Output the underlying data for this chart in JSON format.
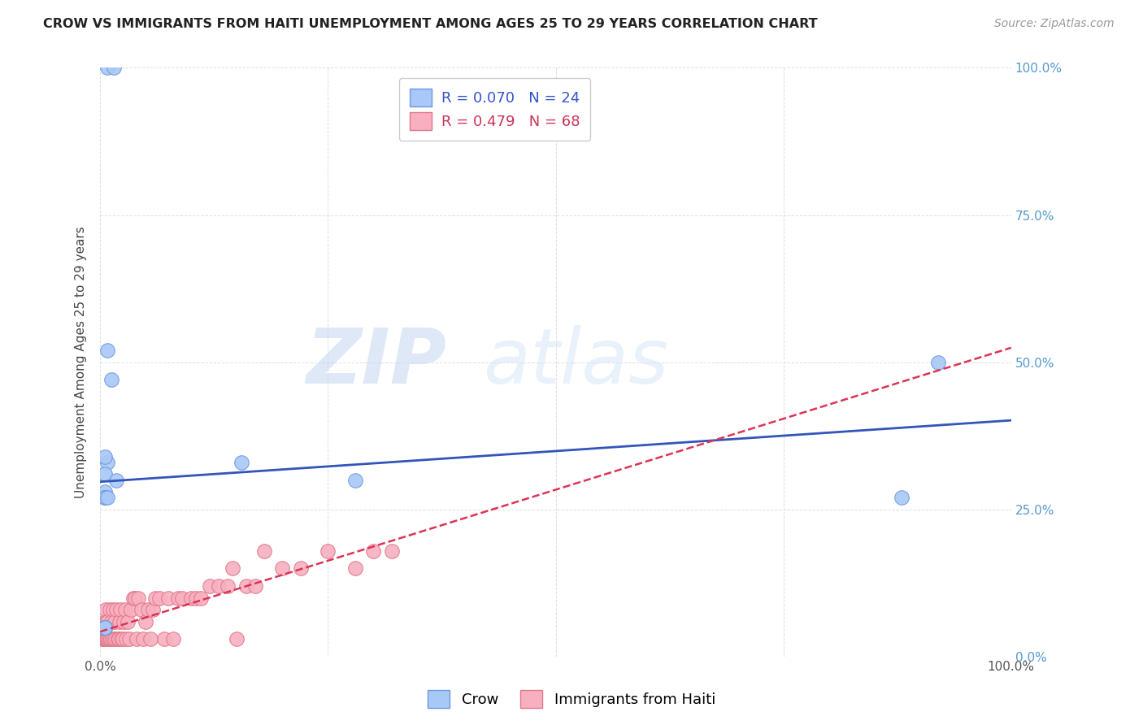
{
  "title": "CROW VS IMMIGRANTS FROM HAITI UNEMPLOYMENT AMONG AGES 25 TO 29 YEARS CORRELATION CHART",
  "source": "Source: ZipAtlas.com",
  "ylabel": "Unemployment Among Ages 25 to 29 years",
  "crow_R": 0.07,
  "crow_N": 24,
  "haiti_R": 0.479,
  "haiti_N": 68,
  "legend_labels": [
    "Crow",
    "Immigrants from Haiti"
  ],
  "crow_color": "#a8c8f8",
  "crow_edge_color": "#7099dd",
  "haiti_color": "#f8b0c0",
  "haiti_edge_color": "#e07888",
  "crow_line_color": "#3355bb",
  "haiti_line_color": "#dd3355",
  "watermark_zip": "ZIP",
  "watermark_atlas": "atlas",
  "crow_points_x": [
    0.008,
    0.015,
    0.008,
    0.012,
    0.008,
    0.005,
    0.005,
    0.018,
    0.155,
    0.28,
    0.88,
    0.92,
    0.005,
    0.005,
    0.005,
    0.005,
    0.008,
    0.005,
    0.005,
    0.005,
    0.005,
    0.005,
    0.005,
    0.005
  ],
  "crow_points_y": [
    1.0,
    1.0,
    0.52,
    0.47,
    0.33,
    0.34,
    0.31,
    0.3,
    0.33,
    0.3,
    0.27,
    0.5,
    0.28,
    0.27,
    0.27,
    0.27,
    0.27,
    0.05,
    0.05,
    0.05,
    0.05,
    0.05,
    0.05,
    0.05
  ],
  "haiti_points_x": [
    0.002,
    0.003,
    0.004,
    0.005,
    0.005,
    0.006,
    0.006,
    0.007,
    0.007,
    0.008,
    0.008,
    0.009,
    0.01,
    0.01,
    0.011,
    0.012,
    0.013,
    0.014,
    0.015,
    0.016,
    0.017,
    0.018,
    0.019,
    0.02,
    0.021,
    0.022,
    0.023,
    0.025,
    0.026,
    0.027,
    0.028,
    0.03,
    0.032,
    0.034,
    0.036,
    0.038,
    0.04,
    0.042,
    0.045,
    0.047,
    0.05,
    0.052,
    0.055,
    0.058,
    0.06,
    0.065,
    0.07,
    0.075,
    0.08,
    0.085,
    0.09,
    0.1,
    0.105,
    0.11,
    0.12,
    0.13,
    0.14,
    0.145,
    0.15,
    0.16,
    0.17,
    0.18,
    0.2,
    0.22,
    0.25,
    0.28,
    0.3,
    0.32
  ],
  "haiti_points_y": [
    0.03,
    0.03,
    0.03,
    0.03,
    0.06,
    0.03,
    0.08,
    0.03,
    0.06,
    0.03,
    0.06,
    0.03,
    0.03,
    0.08,
    0.03,
    0.06,
    0.03,
    0.08,
    0.03,
    0.06,
    0.03,
    0.08,
    0.03,
    0.03,
    0.06,
    0.08,
    0.03,
    0.03,
    0.06,
    0.08,
    0.03,
    0.06,
    0.03,
    0.08,
    0.1,
    0.1,
    0.03,
    0.1,
    0.08,
    0.03,
    0.06,
    0.08,
    0.03,
    0.08,
    0.1,
    0.1,
    0.03,
    0.1,
    0.03,
    0.1,
    0.1,
    0.1,
    0.1,
    0.1,
    0.12,
    0.12,
    0.12,
    0.15,
    0.03,
    0.12,
    0.12,
    0.18,
    0.15,
    0.15,
    0.18,
    0.15,
    0.18,
    0.18
  ]
}
